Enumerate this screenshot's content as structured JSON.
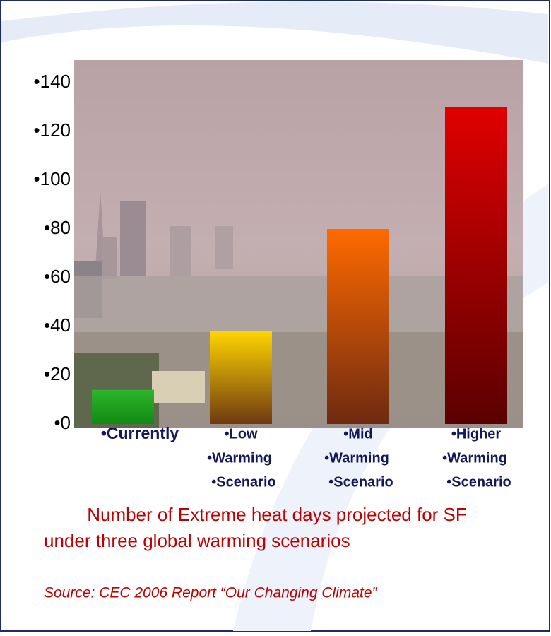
{
  "chart_data": {
    "type": "bar",
    "categories": [
      [
        "•Currently"
      ],
      [
        "•Low",
        "•Warming",
        "•Scenario"
      ],
      [
        "•Mid",
        "•Warming",
        "•Scenario"
      ],
      [
        "•Higher",
        "•Warming",
        "•Scenario"
      ]
    ],
    "values": [
      14,
      38,
      80,
      130
    ],
    "colors": [
      [
        "#2db52d",
        "#118a11"
      ],
      [
        "#ffd400",
        "#6e3a10"
      ],
      [
        "#ff6a00",
        "#6e2a10"
      ],
      [
        "#e00000",
        "#5a0000"
      ]
    ],
    "ylim": [
      0,
      140
    ],
    "yticks": [
      {
        "value": 0,
        "label": "•0"
      },
      {
        "value": 20,
        "label": "•20"
      },
      {
        "value": 40,
        "label": "•40"
      },
      {
        "value": 60,
        "label": "•60"
      },
      {
        "value": 80,
        "label": "•80"
      },
      {
        "value": 100,
        "label": "•100"
      },
      {
        "value": 120,
        "label": "•120"
      },
      {
        "value": 140,
        "label": "•140"
      }
    ],
    "caption": [
      "Number of Extreme heat days projected for SF",
      "under three global warming scenarios"
    ],
    "source": "Source: CEC 2006 Report “Our Changing Climate”"
  }
}
